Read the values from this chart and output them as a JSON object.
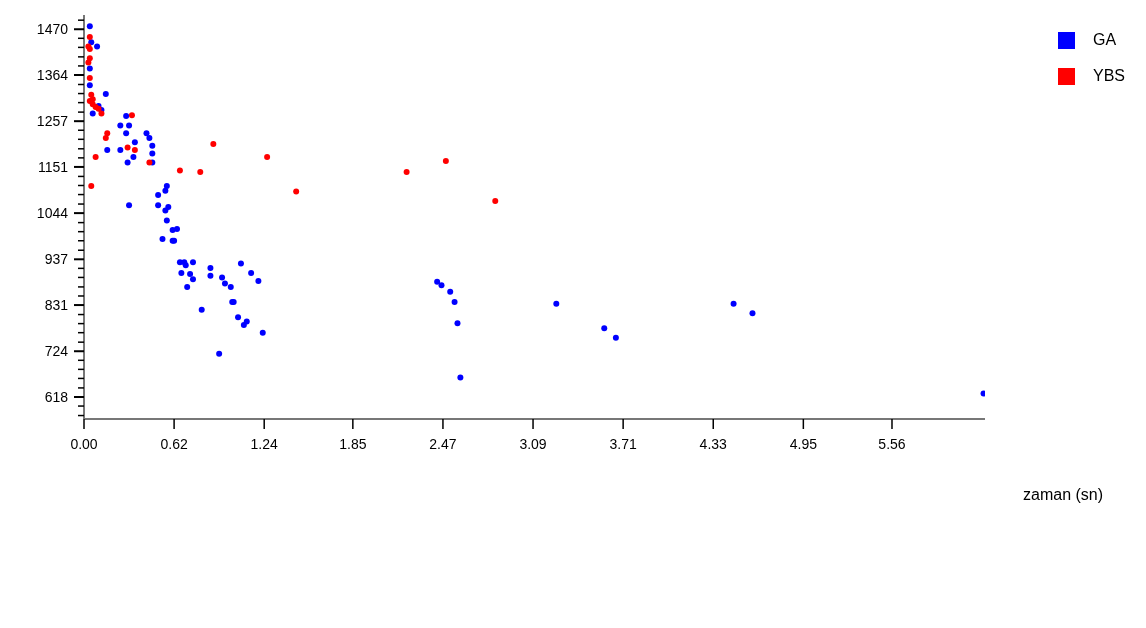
{
  "chart_data": {
    "type": "scatter",
    "xlabel": "zaman (sn)",
    "legend": "top right",
    "marker": "circle",
    "grid": false,
    "xlim": [
      0,
      6.2
    ],
    "xticks": [
      {
        "value": 0,
        "label": "0.00"
      },
      0.62,
      1.24,
      1.85,
      2.47,
      3.09,
      3.71,
      4.33,
      4.95,
      5.56
    ],
    "ylim": [
      567,
      1503
    ],
    "yticks": [
      {
        "value": 575,
        "label": null
      },
      {
        "value": 597,
        "label": null
      },
      618,
      {
        "value": 639,
        "label": null
      },
      {
        "value": 661,
        "label": null
      },
      {
        "value": 682,
        "label": null
      },
      {
        "value": 703,
        "label": null
      },
      724,
      {
        "value": 745,
        "label": null
      },
      {
        "value": 767,
        "label": null
      },
      {
        "value": 788,
        "label": null
      },
      {
        "value": 809,
        "label": null
      },
      831,
      {
        "value": 852,
        "label": null
      },
      {
        "value": 873,
        "label": null
      },
      {
        "value": 895,
        "label": null
      },
      {
        "value": 916,
        "label": null
      },
      937,
      {
        "value": 958,
        "label": null
      },
      {
        "value": 980,
        "label": null
      },
      {
        "value": 1001,
        "label": null
      },
      {
        "value": 1022,
        "label": null
      },
      1044,
      {
        "value": 1065,
        "label": null
      },
      {
        "value": 1087,
        "label": null
      },
      {
        "value": 1108,
        "label": null
      },
      {
        "value": 1129,
        "label": null
      },
      1151,
      {
        "value": 1172,
        "label": null
      },
      {
        "value": 1193,
        "label": null
      },
      {
        "value": 1215,
        "label": null
      },
      {
        "value": 1236,
        "label": null
      },
      1257,
      {
        "value": 1278,
        "label": null
      },
      {
        "value": 1300,
        "label": null
      },
      {
        "value": 1321,
        "label": null
      },
      {
        "value": 1342,
        "label": null
      },
      1364,
      {
        "value": 1385,
        "label": null
      },
      {
        "value": 1406,
        "label": null
      },
      {
        "value": 1428,
        "label": null
      },
      {
        "value": 1449,
        "label": null
      },
      1470,
      {
        "value": 1491,
        "label": null
      }
    ],
    "series": [
      {
        "name": "GA",
        "color": "#0000ff",
        "x": [
          0.04,
          0.05,
          0.09,
          0.04,
          0.04,
          0.15,
          0.1,
          0.12,
          0.06,
          0.29,
          0.25,
          0.31,
          0.29,
          0.43,
          0.45,
          0.35,
          0.47,
          0.16,
          0.25,
          0.47,
          0.34,
          0.3,
          0.47,
          0.57,
          0.56,
          0.51,
          0.31,
          0.51,
          0.58,
          0.56,
          0.57,
          0.61,
          0.64,
          0.54,
          0.61,
          0.62,
          0.66,
          0.69,
          0.75,
          0.7,
          0.87,
          1.08,
          0.67,
          0.73,
          0.75,
          1.15,
          0.87,
          0.95,
          0.97,
          1.2,
          1.01,
          0.71,
          1.02,
          1.03,
          0.81,
          1.06,
          1.12,
          1.1,
          1.23,
          0.93,
          2.43,
          2.46,
          2.52,
          2.55,
          2.57,
          2.59,
          3.25,
          3.58,
          3.66,
          4.47,
          4.6,
          6.19
        ],
        "values": [
          1477,
          1440,
          1430,
          1379,
          1340,
          1320,
          1292,
          1283,
          1275,
          1269,
          1247,
          1247,
          1229,
          1229,
          1218,
          1208,
          1200,
          1190,
          1190,
          1182,
          1174,
          1161,
          1161,
          1107,
          1096,
          1086,
          1062,
          1062,
          1058,
          1050,
          1027,
          1005,
          1007,
          984,
          980,
          980,
          930,
          930,
          930,
          923,
          917,
          927,
          905,
          903,
          891,
          905,
          899,
          895,
          881,
          887,
          873,
          873,
          838,
          838,
          820,
          803,
          793,
          785,
          767,
          718,
          885,
          877,
          862,
          838,
          789,
          663,
          834,
          777,
          755,
          834,
          812,
          626
        ]
      },
      {
        "name": "YBS",
        "color": "#ff0000",
        "x": [
          0.04,
          0.03,
          0.04,
          0.04,
          0.03,
          0.04,
          0.05,
          0.06,
          0.04,
          0.06,
          0.08,
          0.1,
          0.12,
          0.33,
          0.16,
          0.15,
          0.3,
          0.35,
          0.08,
          0.45,
          0.89,
          1.26,
          0.66,
          0.8,
          0.05,
          1.46,
          2.22,
          2.49,
          2.83
        ],
        "values": [
          1452,
          1430,
          1424,
          1403,
          1393,
          1357,
          1318,
          1308,
          1304,
          1296,
          1290,
          1286,
          1275,
          1271,
          1229,
          1218,
          1196,
          1190,
          1174,
          1161,
          1204,
          1174,
          1143,
          1139,
          1107,
          1094,
          1139,
          1165,
          1072
        ]
      }
    ]
  }
}
